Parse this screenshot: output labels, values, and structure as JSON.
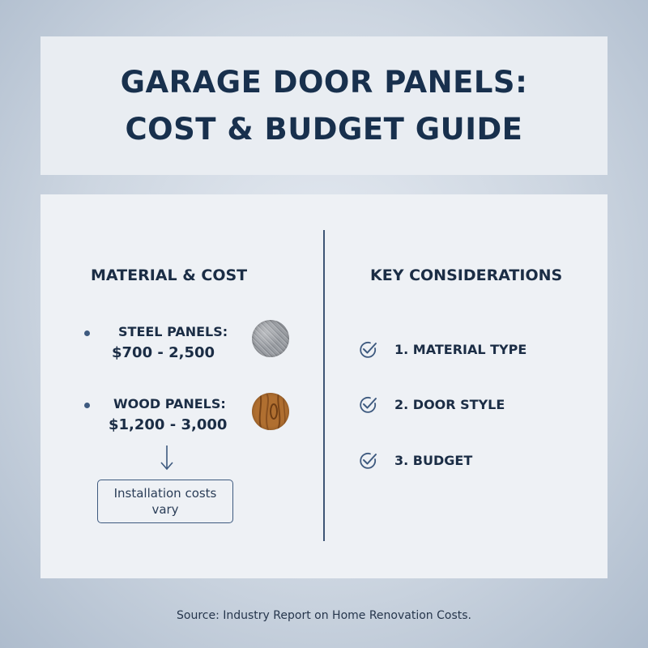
{
  "title": {
    "line1": "GARAGE DOOR PANELS:",
    "line2": "COST & BUDGET GUIDE"
  },
  "left_column": {
    "heading": "MATERIAL & COST",
    "materials": [
      {
        "label": "STEEL PANELS:",
        "price": "$700 - 2,500",
        "icon": "steel-texture-icon"
      },
      {
        "label": "WOOD PANELS:",
        "price": "$1,200 - 3,000",
        "icon": "wood-grain-icon"
      }
    ],
    "arrow_icon": "arrow-down-icon",
    "note_line1": "Installation costs",
    "note_line2": "vary"
  },
  "right_column": {
    "heading": "KEY CONSIDERATIONS",
    "check_icon": "checkmark-circle-icon",
    "items": [
      {
        "label": "1. MATERIAL TYPE"
      },
      {
        "label": "2. DOOR STYLE"
      },
      {
        "label": "3. BUDGET"
      }
    ]
  },
  "source": "Source: Industry Report on Home Renovation Costs.",
  "colors": {
    "title_text": "#18304d",
    "accent": "#3e5a7f",
    "panel_bg": "#eef1f5",
    "background": "#cdd6e1"
  }
}
